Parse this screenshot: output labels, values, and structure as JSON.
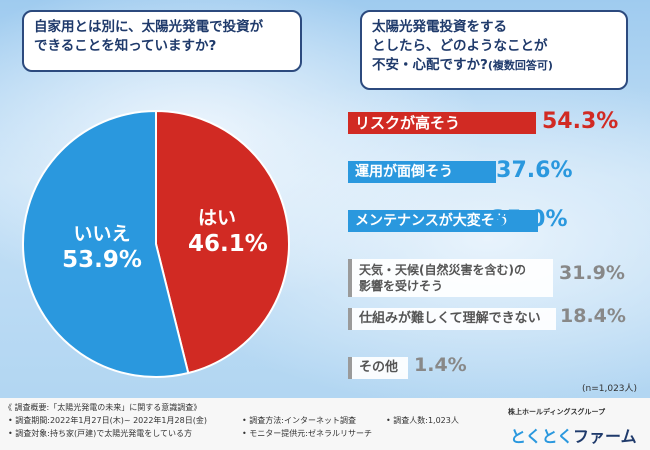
{
  "q1": {
    "line1": "自家用とは別に、太陽光発電で投資が",
    "line2": "できることを知っていますか?"
  },
  "q2": {
    "line1": "太陽光発電投資をする",
    "line2": "としたら、どのようなことが",
    "line3": "不安・心配ですか?",
    "line3b": "(複数回答可)"
  },
  "chart_data": [
    {
      "type": "pie",
      "slices": [
        {
          "label": "はい",
          "value": 46.1,
          "display": "46.1%",
          "color": "#d12a23"
        },
        {
          "label": "いいえ",
          "value": 53.9,
          "display": "53.9%",
          "color": "#2a98de"
        }
      ]
    },
    {
      "type": "bar",
      "orientation": "horizontal",
      "max_value": 54.3,
      "categories": [
        "リスクが高そう",
        "運用が面倒そう",
        "メンテナンスが大変そう",
        "天気・天候(自然災害を含む)の影響を受けそう",
        "仕組みが難しくて理解できない",
        "その他"
      ],
      "values": [
        54.3,
        37.6,
        35.0,
        31.9,
        18.4,
        1.4
      ],
      "displays": [
        "54.3%",
        "37.6%",
        "35.0%",
        "31.9%",
        "18.4%",
        "1.4%"
      ],
      "colors": [
        "#d12a23",
        "#2a98de",
        "#2a98de",
        "#9a9a9a",
        "#9a9a9a",
        "#9a9a9a"
      ]
    }
  ],
  "labels": {
    "bar4_line1": "天気・天候(自然災害を含む)の",
    "bar4_line2": "影響を受けそう",
    "n": "(n=1,023人)"
  },
  "footer": {
    "title": "《 調査概要:「太陽光発電の未来」に関する意識調査》",
    "period": "• 調査期間:2022年1月27日(木)~ 2022年1月28日(金)",
    "method": "• 調査方法:インターネット調査",
    "count": "• 調査人数:1,023人",
    "target": "• 調査対象:持ち家(戸建)で太陽光発電をしている方",
    "monitor": "• モニター提供元:ゼネラルリサーチ",
    "logo_sub": "株上ホールディングスグループ",
    "logo_a": "とくとく",
    "logo_b": "ファーム"
  }
}
